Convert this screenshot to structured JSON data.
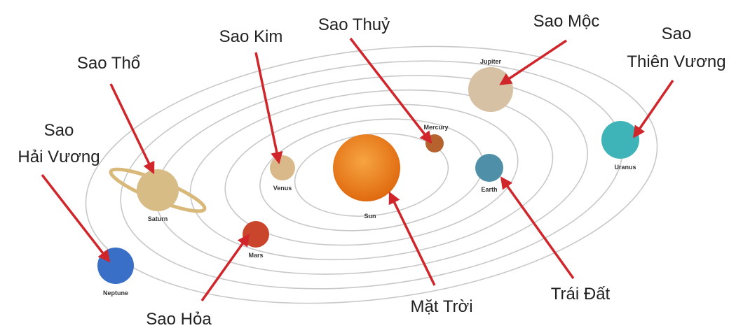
{
  "planets": [
    {
      "name": "Sun",
      "callout": [
        "Mặt Trời"
      ]
    },
    {
      "name": "Mercury",
      "callout": [
        "Sao Thuỷ"
      ]
    },
    {
      "name": "Venus",
      "callout": [
        "Sao Kim"
      ]
    },
    {
      "name": "Earth",
      "callout": [
        "Trái Đất"
      ]
    },
    {
      "name": "Mars",
      "callout": [
        "Sao Hỏa"
      ]
    },
    {
      "name": "Jupiter",
      "callout": [
        "Sao Mộc"
      ]
    },
    {
      "name": "Saturn",
      "callout": [
        "Sao Thổ"
      ]
    },
    {
      "name": "Uranus",
      "callout": [
        "Sao",
        "Thiên Vương"
      ]
    },
    {
      "name": "Neptune",
      "callout": [
        "Sao",
        "Hải Vương"
      ]
    }
  ]
}
